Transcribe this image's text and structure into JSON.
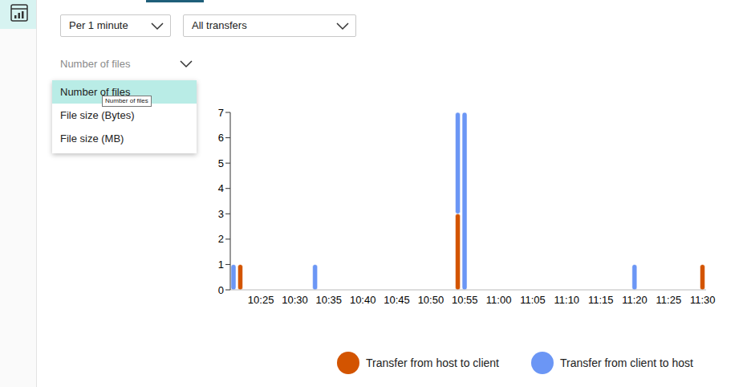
{
  "controls": {
    "interval": "Per 1 minute",
    "transfers": "All transfers",
    "metric_placeholder": "Number of files"
  },
  "metric_menu": {
    "items": [
      "Number of files",
      "File size (Bytes)",
      "File size (MB)"
    ],
    "highlighted": "Number of files",
    "tooltip": "Number of files"
  },
  "chart_data": {
    "type": "bar",
    "stacked": true,
    "grid": false,
    "legend": "bottom",
    "categories": [
      null,
      null,
      null,
      null,
      "10:25",
      null,
      null,
      null,
      null,
      "10:30",
      null,
      null,
      null,
      null,
      "10:35",
      null,
      null,
      null,
      null,
      "10:40",
      null,
      null,
      null,
      null,
      "10:45",
      null,
      null,
      null,
      null,
      "10:50",
      null,
      null,
      null,
      null,
      "10:55",
      null,
      null,
      null,
      null,
      "11:00",
      null,
      null,
      null,
      null,
      "11:05",
      null,
      null,
      null,
      null,
      "11:10",
      null,
      null,
      null,
      null,
      "11:15",
      null,
      null,
      null,
      null,
      "11:20",
      null,
      null,
      null,
      null,
      "11:25",
      null,
      null,
      null,
      null,
      "11:30"
    ],
    "ylim": [
      0,
      7
    ],
    "yticks": [
      0,
      1,
      2,
      3,
      4,
      5,
      6,
      7
    ],
    "series": [
      {
        "name": "Transfer from host to client",
        "color": "#d35400",
        "values": [
          0,
          1,
          0,
          0,
          0,
          0,
          0,
          0,
          0,
          0,
          0,
          0,
          0,
          0,
          0,
          0,
          0,
          0,
          0,
          0,
          0,
          0,
          0,
          0,
          0,
          0,
          0,
          0,
          0,
          0,
          0,
          0,
          0,
          3,
          0,
          0,
          0,
          0,
          0,
          0,
          0,
          0,
          0,
          0,
          0,
          0,
          0,
          0,
          0,
          0,
          0,
          0,
          0,
          0,
          0,
          0,
          0,
          0,
          0,
          0,
          0,
          0,
          0,
          0,
          0,
          0,
          0,
          0,
          0,
          1
        ]
      },
      {
        "name": "Transfer from client to host",
        "color": "#6b96f5",
        "values": [
          1,
          0,
          0,
          0,
          0,
          0,
          0,
          0,
          0,
          0,
          0,
          0,
          1,
          0,
          0,
          0,
          0,
          0,
          0,
          0,
          0,
          0,
          0,
          0,
          0,
          0,
          0,
          0,
          0,
          0,
          0,
          0,
          0,
          4,
          7,
          0,
          0,
          0,
          0,
          0,
          0,
          0,
          0,
          0,
          0,
          0,
          0,
          0,
          0,
          0,
          0,
          0,
          0,
          0,
          0,
          0,
          0,
          0,
          0,
          1,
          0,
          0,
          0,
          0,
          0,
          0,
          0,
          0,
          0,
          0
        ]
      }
    ]
  }
}
